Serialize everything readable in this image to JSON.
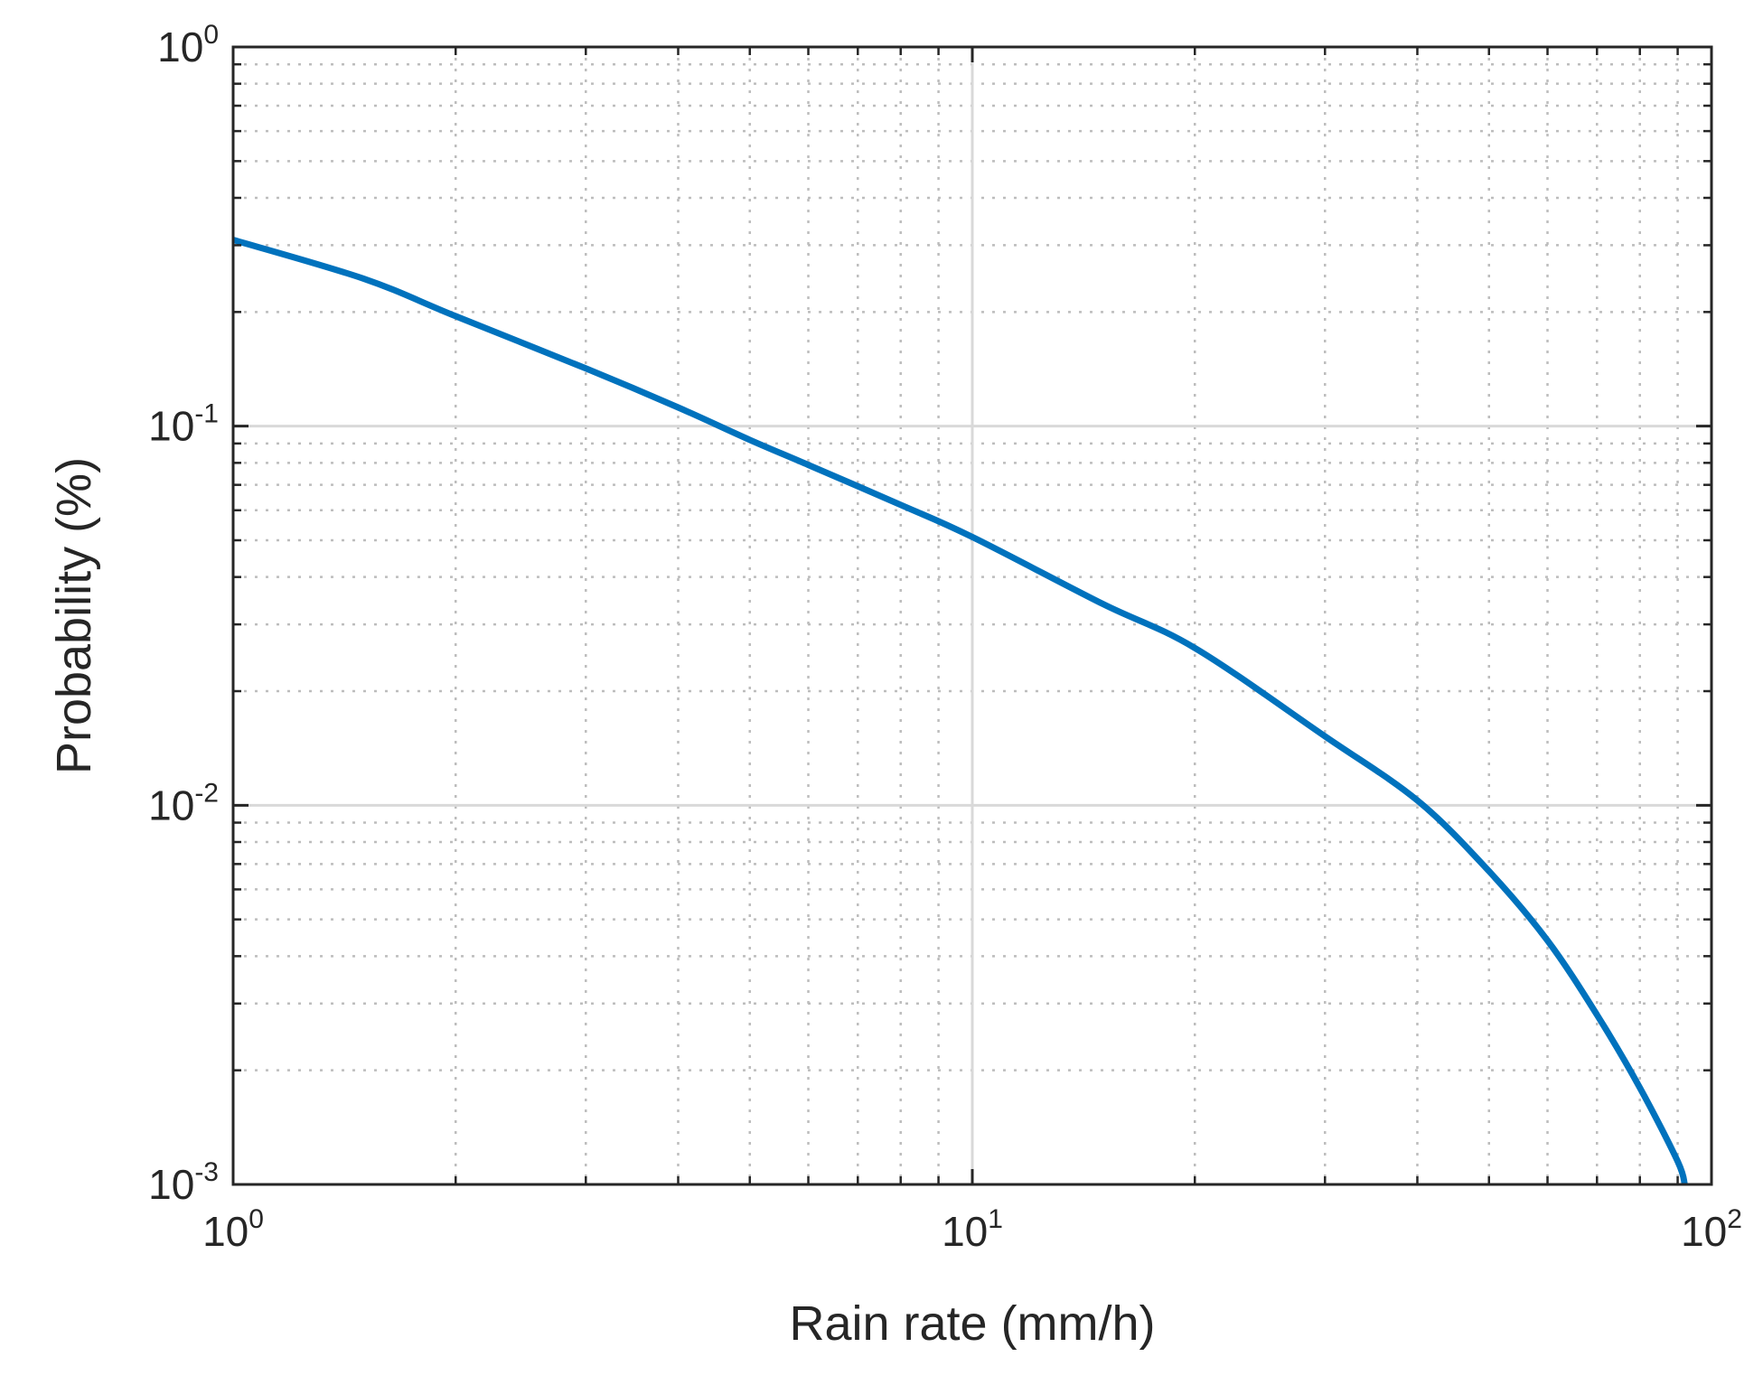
{
  "chart_data": {
    "type": "line",
    "title": "",
    "xlabel": "Rain rate (mm/h)",
    "ylabel": "Probability (%)",
    "x_scale": "log",
    "y_scale": "log",
    "xlim": [
      1,
      100
    ],
    "ylim": [
      0.001,
      1
    ],
    "grid": true,
    "x_ticks": [
      {
        "value": 1,
        "base": "10",
        "exp": "0"
      },
      {
        "value": 10,
        "base": "10",
        "exp": "1"
      },
      {
        "value": 100,
        "base": "10",
        "exp": "2"
      }
    ],
    "y_ticks": [
      {
        "value": 0.001,
        "base": "10",
        "exp": "-3"
      },
      {
        "value": 0.01,
        "base": "10",
        "exp": "-2"
      },
      {
        "value": 0.1,
        "base": "10",
        "exp": "-1"
      },
      {
        "value": 1,
        "base": "10",
        "exp": "0"
      }
    ],
    "series": [
      {
        "name": "Probability",
        "color": "#0072bd",
        "x": [
          1,
          1.5,
          2,
          3,
          4,
          5,
          6,
          8,
          10,
          15,
          20,
          30,
          40,
          50,
          60,
          70,
          80,
          90,
          92
        ],
        "y": [
          0.31,
          0.245,
          0.195,
          0.142,
          0.112,
          0.092,
          0.079,
          0.062,
          0.051,
          0.034,
          0.026,
          0.0152,
          0.0103,
          0.0067,
          0.0044,
          0.0028,
          0.0018,
          0.00115,
          0.001
        ]
      }
    ]
  },
  "colors": {
    "line": "#0072bd",
    "axis": "#262626",
    "major_grid": "#d9d9d9",
    "minor_grid": "#bdbdbd"
  }
}
